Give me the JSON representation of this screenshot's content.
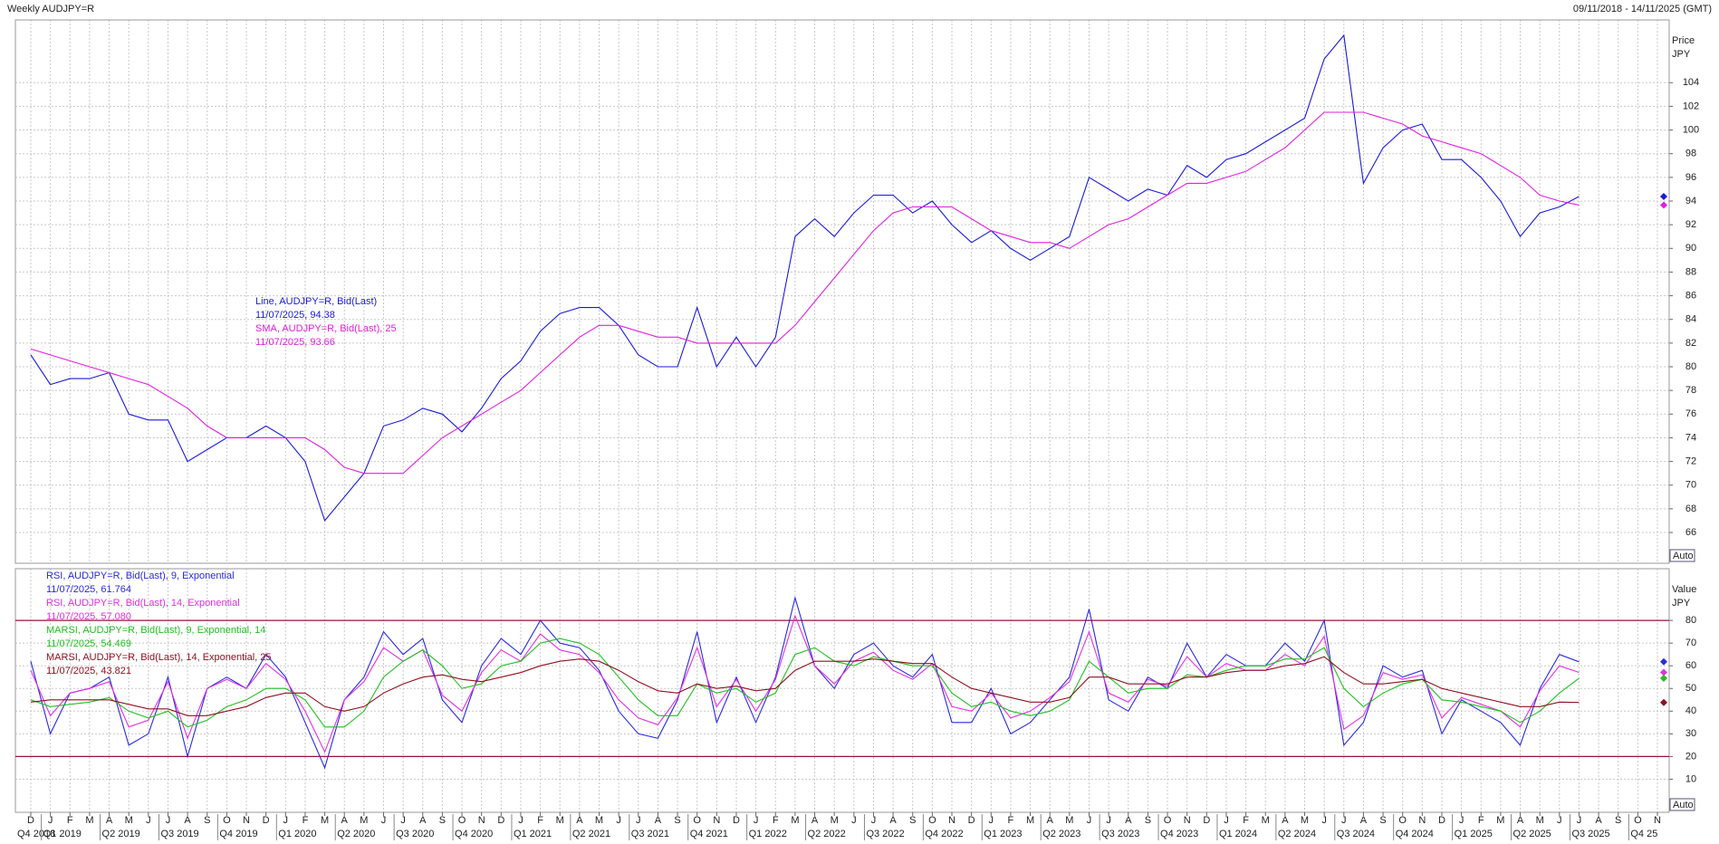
{
  "header": {
    "title": "Weekly AUDJPY=R",
    "range": "09/11/2018 - 14/11/2025 (GMT)"
  },
  "chart_data": [
    {
      "type": "line",
      "ylabel": "Price",
      "yunit": "JPY",
      "auto_button": "Auto",
      "ylim": [
        63.4,
        109.3
      ],
      "yticks": [
        66,
        68,
        70,
        72,
        74,
        76,
        78,
        80,
        82,
        84,
        86,
        88,
        90,
        92,
        94,
        96,
        98,
        100,
        102,
        104
      ],
      "grid": true,
      "series": [
        {
          "name": "Line, AUDJPY=R, Bid(Last)",
          "last_label": "11/07/2025, 94.38",
          "color": "#1a1adc",
          "values": [
            81,
            78.5,
            79,
            79,
            79.5,
            76,
            75.5,
            75.5,
            72,
            73,
            74,
            74,
            75,
            74,
            72,
            67,
            69,
            71,
            75,
            75.5,
            76.5,
            76,
            74.5,
            76.5,
            79,
            80.5,
            83,
            84.5,
            85,
            85,
            83.5,
            81,
            80,
            80,
            85,
            80,
            82.5,
            80,
            82.5,
            91,
            92.5,
            91,
            93,
            94.5,
            94.5,
            93,
            94,
            92,
            90.5,
            91.5,
            90,
            89,
            90,
            91,
            96,
            95,
            94,
            95,
            94.5,
            97,
            96,
            97.5,
            98,
            99,
            100,
            101,
            106,
            108,
            95.5,
            98.5,
            100,
            100.5,
            97.5,
            97.5,
            96,
            94,
            91,
            93,
            93.5,
            94.38,
            null,
            null,
            null,
            null
          ]
        },
        {
          "name": "SMA, AUDJPY=R, Bid(Last),  25",
          "last_label": "11/07/2025, 93.66",
          "color": "#e020e0",
          "values": [
            81.5,
            81,
            80.5,
            80,
            79.5,
            79,
            78.5,
            77.5,
            76.5,
            75,
            74,
            74,
            74,
            74,
            74,
            73,
            71.5,
            71,
            71,
            71,
            72.5,
            74,
            75,
            76,
            77,
            78,
            79.5,
            81,
            82.5,
            83.5,
            83.5,
            83,
            82.5,
            82.5,
            82,
            82,
            82,
            82,
            82,
            83.5,
            85.5,
            87.5,
            89.5,
            91.5,
            93,
            93.5,
            93.5,
            93.5,
            92.5,
            91.5,
            91,
            90.5,
            90.5,
            90,
            91,
            92,
            92.5,
            93.5,
            94.5,
            95.5,
            95.5,
            96,
            96.5,
            97.5,
            98.5,
            100,
            101.5,
            101.5,
            101.5,
            101,
            100.5,
            99.5,
            99,
            98.5,
            98,
            97,
            96,
            94.5,
            94,
            93.66,
            null,
            null,
            null,
            null
          ]
        }
      ]
    },
    {
      "type": "line",
      "ylabel": "Value",
      "yunit": "JPY",
      "auto_button": "Auto",
      "ylim": [
        -4.6,
        102.8
      ],
      "yticks": [
        10,
        20,
        30,
        40,
        50,
        60,
        70,
        80
      ],
      "grid": true,
      "hlines": [
        20,
        80
      ],
      "hline_color": "#a01040",
      "categories": [
        "D",
        "J",
        "F",
        "M",
        "A",
        "M",
        "J",
        "J",
        "A",
        "S",
        "O",
        "N",
        "D",
        "J",
        "F",
        "M",
        "A",
        "M",
        "J",
        "J",
        "A",
        "S",
        "O",
        "N",
        "D",
        "J",
        "F",
        "M",
        "A",
        "M",
        "J",
        "J",
        "A",
        "S",
        "O",
        "N",
        "D",
        "J",
        "F",
        "M",
        "A",
        "M",
        "J",
        "J",
        "A",
        "S",
        "O",
        "N",
        "D",
        "J",
        "F",
        "M",
        "A",
        "M",
        "J",
        "J",
        "A",
        "S",
        "O",
        "N",
        "D",
        "J",
        "F",
        "M",
        "A",
        "M",
        "J",
        "J",
        "A",
        "S",
        "O",
        "N",
        "D",
        "J",
        "F",
        "M",
        "A",
        "M",
        "J",
        "J",
        "A",
        "S",
        "O",
        "N"
      ],
      "quarter_labels": [
        "Q4 2018",
        "Q1 2019",
        "Q2 2019",
        "Q3 2019",
        "Q4 2019",
        "Q1 2020",
        "Q2 2020",
        "Q3 2020",
        "Q4 2020",
        "Q1 2021",
        "Q2 2021",
        "Q3 2021",
        "Q4 2021",
        "Q1 2022",
        "Q2 2022",
        "Q3 2022",
        "Q4 2022",
        "Q1 2023",
        "Q2 2023",
        "Q3 2023",
        "Q4 2023",
        "Q1 2024",
        "Q2 2024",
        "Q3 2024",
        "Q4 2024",
        "Q1 2025",
        "Q2 2025",
        "Q3 2025",
        "Q4 25"
      ],
      "series": [
        {
          "name": "RSI, AUDJPY=R, Bid(Last),  9, Exponential",
          "last_label": "11/07/2025, 61.764",
          "color": "#2a2ae0",
          "values": [
            62,
            30,
            48,
            50,
            55,
            25,
            30,
            55,
            20,
            50,
            55,
            50,
            65,
            55,
            35,
            15,
            45,
            55,
            75,
            65,
            72,
            45,
            35,
            60,
            72,
            65,
            80,
            70,
            68,
            58,
            40,
            30,
            28,
            45,
            75,
            35,
            55,
            35,
            55,
            90,
            60,
            50,
            65,
            70,
            60,
            55,
            65,
            35,
            35,
            50,
            30,
            35,
            45,
            55,
            85,
            45,
            40,
            55,
            50,
            70,
            55,
            65,
            60,
            60,
            70,
            62,
            80,
            25,
            35,
            60,
            55,
            58,
            30,
            45,
            40,
            35,
            25,
            50,
            65,
            61.764,
            null,
            null,
            null,
            null
          ]
        },
        {
          "name": "RSI, AUDJPY=R, Bid(Last),  14, Exponential",
          "last_label": "11/07/2025, 57.080",
          "color": "#e030e0",
          "values": [
            58,
            38,
            48,
            50,
            53,
            33,
            36,
            53,
            28,
            50,
            54,
            50,
            61,
            54,
            40,
            22,
            45,
            53,
            68,
            62,
            67,
            47,
            40,
            57,
            67,
            62,
            74,
            67,
            65,
            57,
            45,
            37,
            34,
            46,
            68,
            42,
            54,
            40,
            54,
            82,
            60,
            52,
            62,
            66,
            58,
            54,
            61,
            42,
            40,
            48,
            37,
            40,
            46,
            53,
            75,
            48,
            44,
            54,
            51,
            64,
            55,
            61,
            58,
            58,
            65,
            60,
            73,
            32,
            38,
            57,
            54,
            56,
            37,
            46,
            43,
            40,
            33,
            49,
            60,
            57.08,
            null,
            null,
            null,
            null
          ]
        },
        {
          "name": "MARSI, AUDJPY=R, Bid(Last),  9, Exponential, 14",
          "last_label": "11/07/2025, 54.469",
          "color": "#20c020",
          "values": [
            45,
            42,
            43,
            44,
            46,
            40,
            37,
            40,
            33,
            36,
            42,
            45,
            50,
            50,
            45,
            33,
            33,
            40,
            55,
            62,
            67,
            60,
            50,
            52,
            60,
            62,
            70,
            72,
            70,
            65,
            55,
            45,
            38,
            38,
            52,
            48,
            50,
            44,
            48,
            65,
            68,
            62,
            60,
            64,
            62,
            60,
            60,
            48,
            42,
            44,
            40,
            38,
            40,
            45,
            62,
            55,
            48,
            50,
            50,
            56,
            55,
            58,
            60,
            60,
            63,
            63,
            68,
            50,
            42,
            48,
            52,
            54,
            45,
            44,
            42,
            40,
            35,
            40,
            48,
            54.469,
            null,
            null,
            null,
            null
          ]
        },
        {
          "name": "MARSI, AUDJPY=R, Bid(Last),  14, Exponential, 25",
          "last_label": "11/07/2025, 43.821",
          "color": "#901020",
          "values": [
            44,
            45,
            45,
            45,
            45,
            43,
            41,
            41,
            38,
            38,
            40,
            42,
            46,
            48,
            48,
            42,
            40,
            42,
            48,
            52,
            55,
            56,
            54,
            53,
            55,
            57,
            60,
            62,
            63,
            62,
            58,
            53,
            49,
            48,
            52,
            50,
            51,
            49,
            50,
            58,
            62,
            62,
            62,
            63,
            62,
            61,
            61,
            55,
            50,
            48,
            46,
            44,
            44,
            46,
            55,
            55,
            52,
            52,
            52,
            55,
            55,
            57,
            58,
            58,
            60,
            61,
            64,
            57,
            52,
            52,
            53,
            54,
            50,
            48,
            46,
            44,
            42,
            42,
            44,
            43.821,
            null,
            null,
            null,
            null
          ]
        }
      ]
    }
  ]
}
